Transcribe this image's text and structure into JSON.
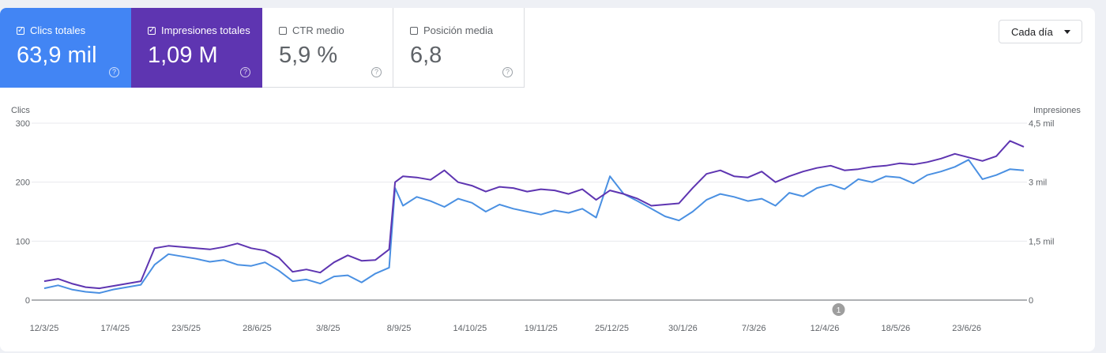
{
  "metrics": [
    {
      "label": "Clics totales",
      "value": "63,9 mil",
      "selected": true,
      "color": "#4285f4"
    },
    {
      "label": "Impresiones totales",
      "value": "1,09 M",
      "selected": true,
      "color": "#5e35b1"
    },
    {
      "label": "CTR medio",
      "value": "5,9 %",
      "selected": false
    },
    {
      "label": "Posición media",
      "value": "6,8",
      "selected": false
    }
  ],
  "help_glyph": "?",
  "check_glyph": "✓",
  "dropdown": {
    "label": "Cada día",
    "icon": "caret-down-icon"
  },
  "annotation": {
    "label": "1",
    "x_date": "2026-04-19"
  },
  "chart_data": {
    "type": "line",
    "left_axis": {
      "label": "Clics",
      "ticks": [
        "0",
        "100",
        "200",
        "300"
      ],
      "range": [
        0,
        300
      ]
    },
    "right_axis": {
      "label": "Impresiones",
      "ticks": [
        "0",
        "1,5 mil",
        "3 mil",
        "4,5 mil"
      ],
      "range": [
        0,
        4500
      ]
    },
    "x_range": [
      "2025-03-12",
      "2026-07-22"
    ],
    "x_ticks": [
      "12/3/25",
      "17/4/25",
      "23/5/25",
      "28/6/25",
      "3/8/25",
      "8/9/25",
      "14/10/25",
      "19/11/25",
      "25/12/25",
      "30/1/26",
      "7/3/26",
      "12/4/26",
      "18/5/26",
      "23/6/26"
    ],
    "series": [
      {
        "metric": "clics",
        "axis": "left",
        "color": "#4a90e2",
        "x": [
          "2025-03-12",
          "2025-03-19",
          "2025-03-26",
          "2025-04-02",
          "2025-04-09",
          "2025-04-16",
          "2025-04-23",
          "2025-04-30",
          "2025-05-07",
          "2025-05-14",
          "2025-05-21",
          "2025-05-28",
          "2025-06-04",
          "2025-06-11",
          "2025-06-18",
          "2025-06-25",
          "2025-07-02",
          "2025-07-09",
          "2025-07-16",
          "2025-07-23",
          "2025-07-30",
          "2025-08-06",
          "2025-08-13",
          "2025-08-20",
          "2025-08-27",
          "2025-09-03",
          "2025-09-06",
          "2025-09-10",
          "2025-09-17",
          "2025-09-24",
          "2025-10-01",
          "2025-10-08",
          "2025-10-15",
          "2025-10-22",
          "2025-10-29",
          "2025-11-05",
          "2025-11-12",
          "2025-11-19",
          "2025-11-26",
          "2025-12-03",
          "2025-12-10",
          "2025-12-17",
          "2025-12-24",
          "2025-12-31",
          "2026-01-07",
          "2026-01-14",
          "2026-01-21",
          "2026-01-28",
          "2026-02-04",
          "2026-02-11",
          "2026-02-18",
          "2026-02-25",
          "2026-03-04",
          "2026-03-11",
          "2026-03-18",
          "2026-03-25",
          "2026-04-01",
          "2026-04-08",
          "2026-04-15",
          "2026-04-22",
          "2026-04-29",
          "2026-05-06",
          "2026-05-13",
          "2026-05-20",
          "2026-05-27",
          "2026-06-03",
          "2026-06-10",
          "2026-06-17",
          "2026-06-24",
          "2026-07-01",
          "2026-07-08",
          "2026-07-15",
          "2026-07-22"
        ],
        "values": [
          20,
          25,
          18,
          14,
          12,
          18,
          22,
          26,
          60,
          78,
          74,
          70,
          65,
          68,
          60,
          58,
          64,
          50,
          32,
          35,
          28,
          40,
          42,
          30,
          45,
          55,
          190,
          160,
          175,
          168,
          158,
          172,
          165,
          150,
          162,
          155,
          150,
          145,
          152,
          148,
          155,
          140,
          210,
          180,
          168,
          155,
          142,
          135,
          150,
          170,
          180,
          175,
          168,
          172,
          160,
          182,
          176,
          190,
          196,
          188,
          205,
          200,
          210,
          208,
          198,
          212,
          218,
          226,
          238,
          205,
          212,
          222,
          220
        ]
      },
      {
        "metric": "impresiones",
        "axis": "right",
        "color": "#5e35b1",
        "x": [
          "2025-03-12",
          "2025-03-19",
          "2025-03-26",
          "2025-04-02",
          "2025-04-09",
          "2025-04-16",
          "2025-04-23",
          "2025-04-30",
          "2025-05-07",
          "2025-05-14",
          "2025-05-21",
          "2025-05-28",
          "2025-06-04",
          "2025-06-11",
          "2025-06-18",
          "2025-06-25",
          "2025-07-02",
          "2025-07-09",
          "2025-07-16",
          "2025-07-23",
          "2025-07-30",
          "2025-08-06",
          "2025-08-13",
          "2025-08-20",
          "2025-08-27",
          "2025-09-03",
          "2025-09-06",
          "2025-09-10",
          "2025-09-17",
          "2025-09-24",
          "2025-10-01",
          "2025-10-08",
          "2025-10-15",
          "2025-10-22",
          "2025-10-29",
          "2025-11-05",
          "2025-11-12",
          "2025-11-19",
          "2025-11-26",
          "2025-12-03",
          "2025-12-10",
          "2025-12-17",
          "2025-12-24",
          "2025-12-31",
          "2026-01-07",
          "2026-01-14",
          "2026-01-21",
          "2026-01-28",
          "2026-02-04",
          "2026-02-11",
          "2026-02-18",
          "2026-02-25",
          "2026-03-04",
          "2026-03-11",
          "2026-03-18",
          "2026-03-25",
          "2026-04-01",
          "2026-04-08",
          "2026-04-15",
          "2026-04-22",
          "2026-04-29",
          "2026-05-06",
          "2026-05-13",
          "2026-05-20",
          "2026-05-27",
          "2026-06-03",
          "2026-06-10",
          "2026-06-17",
          "2026-06-24",
          "2026-07-01",
          "2026-07-08",
          "2026-07-15",
          "2026-07-22"
        ],
        "values": [
          480,
          540,
          420,
          330,
          300,
          360,
          420,
          480,
          1320,
          1380,
          1350,
          1320,
          1290,
          1350,
          1440,
          1320,
          1260,
          1080,
          720,
          780,
          700,
          960,
          1140,
          1000,
          1020,
          1290,
          3000,
          3150,
          3120,
          3060,
          3300,
          3000,
          2910,
          2760,
          2880,
          2850,
          2760,
          2820,
          2790,
          2700,
          2820,
          2550,
          2790,
          2700,
          2580,
          2400,
          2430,
          2460,
          2850,
          3210,
          3300,
          3150,
          3120,
          3270,
          3000,
          3150,
          3270,
          3360,
          3420,
          3300,
          3330,
          3390,
          3420,
          3480,
          3450,
          3510,
          3600,
          3720,
          3630,
          3540,
          3660,
          4050,
          3900
        ]
      }
    ]
  }
}
